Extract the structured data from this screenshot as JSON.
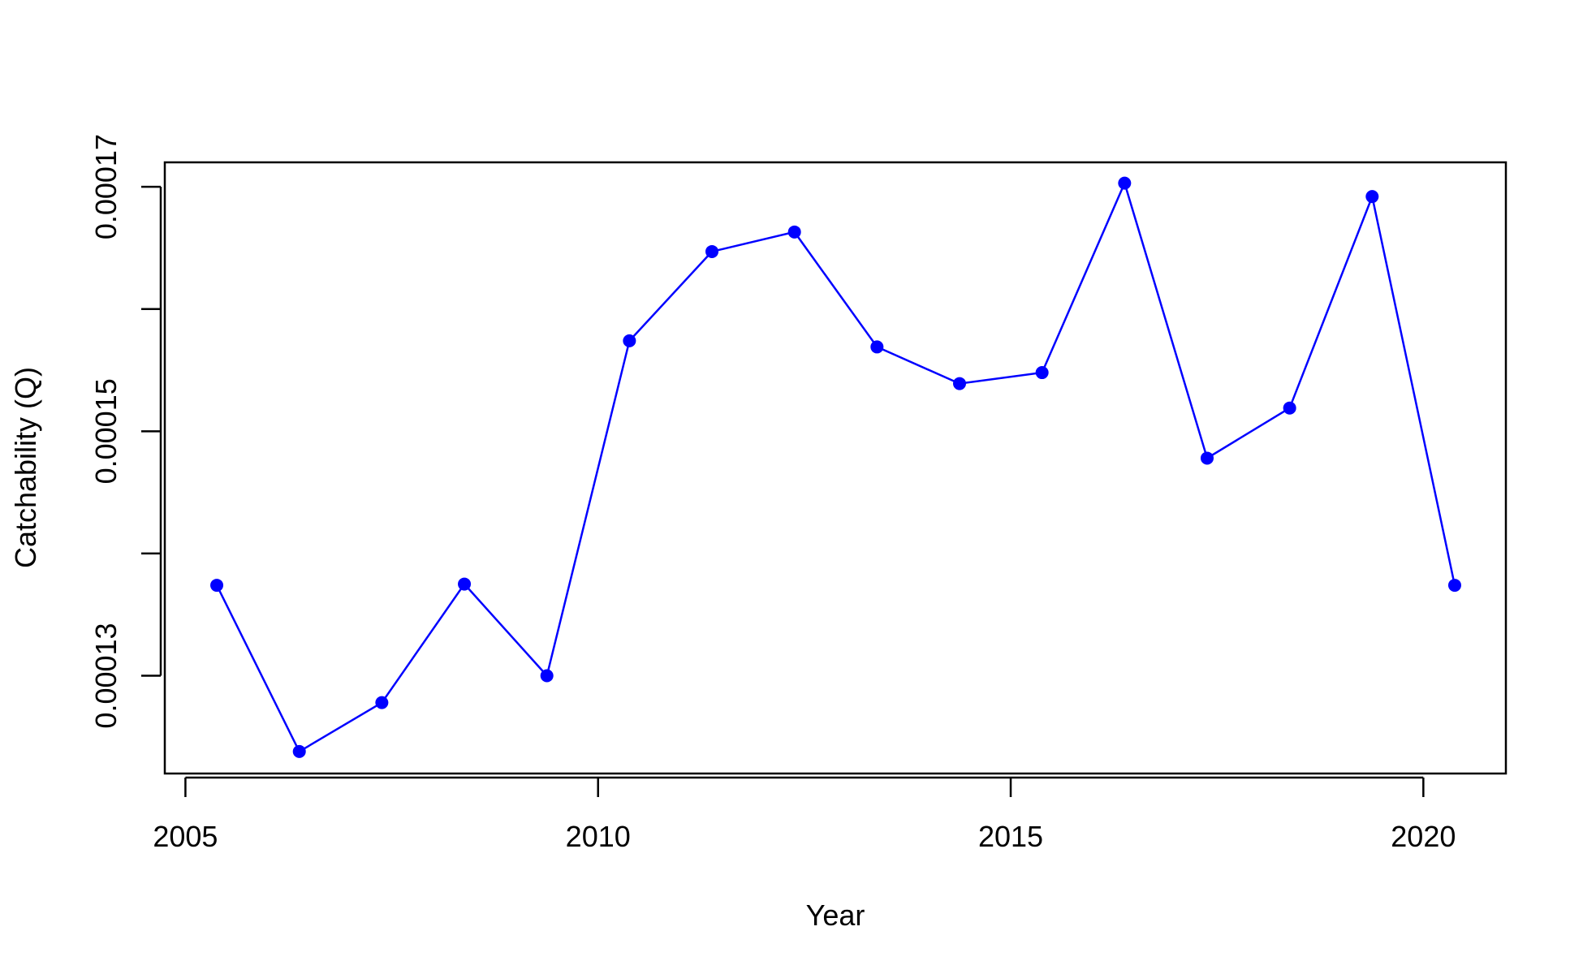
{
  "chart_data": {
    "type": "line",
    "title": "",
    "xlabel": "Year",
    "ylabel": "Catchability (Q)",
    "x": [
      2005.38,
      2006.38,
      2007.38,
      2008.38,
      2009.38,
      2010.38,
      2011.38,
      2012.38,
      2013.38,
      2014.38,
      2015.38,
      2016.38,
      2017.38,
      2018.38,
      2019.38,
      2020.38
    ],
    "series": [
      {
        "values": [
          0.0001374,
          0.0001238,
          0.0001278,
          0.0001375,
          0.00013,
          0.0001574,
          0.0001647,
          0.0001663,
          0.0001569,
          0.0001539,
          0.0001548,
          0.0001703,
          0.0001478,
          0.0001519,
          0.0001692,
          0.0001374
        ],
        "color": "#0000ff"
      }
    ],
    "xlim": [
      2004.75,
      2021.0
    ],
    "ylim": [
      0.000122,
      0.000172
    ],
    "x_ticks": [
      "2005",
      "2010",
      "2015",
      "2020"
    ],
    "y_ticks": [
      0.00013,
      0.00014,
      0.00015,
      0.00016,
      0.00017
    ],
    "y_tick_labels": [
      "0.00013",
      "",
      "0.00015",
      "",
      "0.00017"
    ],
    "grid": false,
    "legend": "none"
  }
}
